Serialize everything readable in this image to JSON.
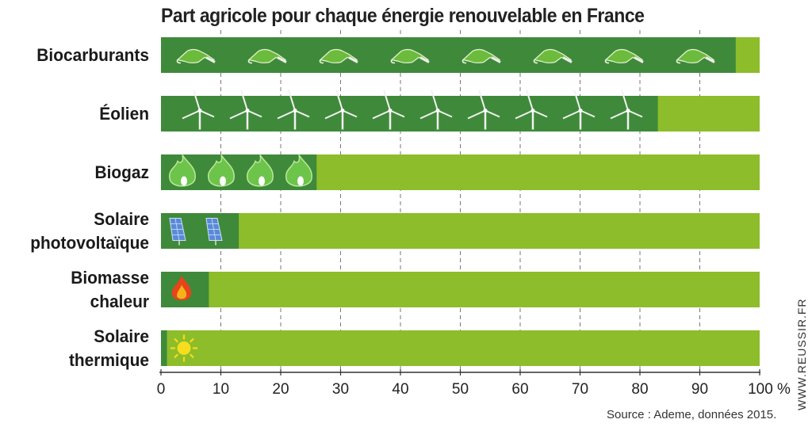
{
  "chart_data": {
    "type": "bar",
    "orientation": "horizontal",
    "stacked_to_100": true,
    "title": "Part agricole pour chaque énergie renouvelable en France",
    "categories": [
      "Biocarburants",
      "Éolien",
      "Biogaz",
      "Solaire photovoltaïque",
      "Biomasse chaleur",
      "Solaire thermique"
    ],
    "category_lines": [
      [
        "Biocarburants"
      ],
      [
        "Éolien"
      ],
      [
        "Biogaz"
      ],
      [
        "Solaire",
        "photovoltaïque"
      ],
      [
        "Biomasse",
        "chaleur"
      ],
      [
        "Solaire",
        "thermique"
      ]
    ],
    "values": [
      96,
      83,
      26,
      13,
      8,
      1
    ],
    "icons": [
      "fuel-pump-icon",
      "wind-turbine-icon",
      "biogas-flame-icon",
      "solar-panel-icon",
      "fire-icon",
      "sun-icon"
    ],
    "icon_counts": [
      8,
      10,
      4,
      2,
      1,
      1
    ],
    "xlim": [
      0,
      100
    ],
    "x_ticks": [
      "0",
      "10",
      "20",
      "30",
      "40",
      "50",
      "60",
      "70",
      "80",
      "90",
      "100 %"
    ],
    "grid": "vertical dashed",
    "colors": {
      "agricultural": "#3f8a3a",
      "total": "#8dbd2a"
    },
    "source": "Source : Ademe, données 2015.",
    "watermark": "WWW.REUSSIR.FR"
  }
}
